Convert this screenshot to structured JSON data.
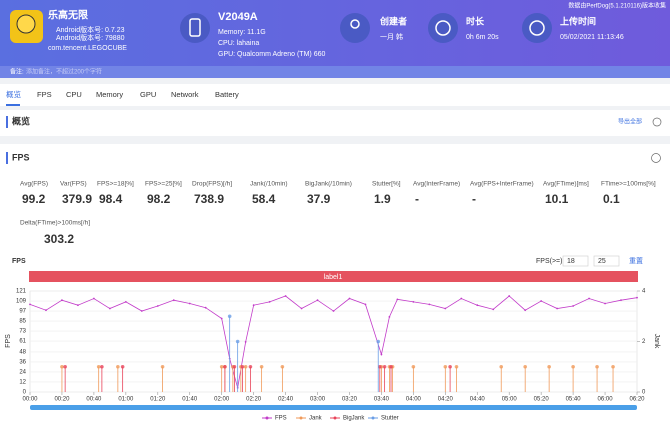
{
  "header": {
    "app_name": "乐高无限",
    "android_version": "Android版本号: 0.7.23",
    "android_code": "Android版本号: 79880",
    "package": "com.tencent.LEGOCUBE",
    "device": "V2049A",
    "memory": "Memory: 11.1G",
    "cpu": "CPU: lahaina",
    "gpu": "GPU: Qualcomm Adreno (TM) 660",
    "creator_label": "创建者",
    "creator": "一月 韩",
    "duration_label": "时长",
    "duration": "0h 6m 20s",
    "upload_label": "上传时间",
    "upload": "05/02/2021 11:13:46",
    "version": "数据由PerfDog(5.1.210116)版本收集"
  },
  "note": {
    "label": "备注:",
    "placeholder": "添加备注，不超过200个字符"
  },
  "tabs": [
    "概览",
    "FPS",
    "CPU",
    "Memory",
    "GPU",
    "Network",
    "Battery"
  ],
  "overview": {
    "title": "概览",
    "export": "导出全部"
  },
  "fps_section": {
    "title": "FPS",
    "metrics": [
      [
        {
          "label": "Avg(FPS)",
          "value": 99.2
        },
        {
          "label": "Var(FPS)",
          "value": 379.9
        },
        {
          "label": "FPS>=18[%]",
          "value": 98.4
        },
        {
          "label": "FPS>=25[%]",
          "value": 98.2
        },
        {
          "label": "Drop(FPS)[/h]",
          "value": 738.9
        },
        {
          "label": "Jank(/10min)",
          "value": 58.4
        },
        {
          "label": "BigJank(/10min)",
          "value": 37.9
        },
        {
          "label": "Stutter[%]",
          "value": 1.9
        },
        {
          "label": "Avg(InterFrame)",
          "value": "-"
        },
        {
          "label": "Avg(FPS+InterFrame)",
          "value": "-"
        },
        {
          "label": "Avg(FTime)[ms]",
          "value": 10.1
        },
        {
          "label": "FTime>=100ms[%]",
          "value": 0.1
        }
      ],
      [
        {
          "label": "Delta(FTime)>100ms[/h]",
          "value": 303.2
        }
      ]
    ]
  },
  "chart_data": {
    "type": "line",
    "title": "FPS",
    "label_bar": "label1",
    "threshold_label": "FPS(>=)",
    "thresholds": [
      18,
      25
    ],
    "reset": "重置",
    "y_label": "FPS",
    "y2_label": "Jank",
    "ylim": [
      0,
      121
    ],
    "yticks": [
      0,
      12,
      24,
      36,
      48,
      61,
      73,
      85,
      97,
      109,
      121
    ],
    "y2lim": [
      0,
      4
    ],
    "y2ticks": [
      0,
      2,
      4
    ],
    "xlim": [
      0,
      380
    ],
    "xticks": [
      {
        "value": 0,
        "label": "00:00"
      },
      {
        "value": 20,
        "label": "00:20"
      },
      {
        "value": 40,
        "label": "00:40"
      },
      {
        "value": 60,
        "label": "01:00"
      },
      {
        "value": 80,
        "label": "01:20"
      },
      {
        "value": 100,
        "label": "01:40"
      },
      {
        "value": 120,
        "label": "02:00"
      },
      {
        "value": 140,
        "label": "02:20"
      },
      {
        "value": 160,
        "label": "02:40"
      },
      {
        "value": 180,
        "label": "03:00"
      },
      {
        "value": 200,
        "label": "03:20"
      },
      {
        "value": 220,
        "label": "03:40"
      },
      {
        "value": 240,
        "label": "04:00"
      },
      {
        "value": 260,
        "label": "04:20"
      },
      {
        "value": 280,
        "label": "04:40"
      },
      {
        "value": 300,
        "label": "05:00"
      },
      {
        "value": 320,
        "label": "05:20"
      },
      {
        "value": 340,
        "label": "05:40"
      },
      {
        "value": 360,
        "label": "06:00"
      },
      {
        "value": 380,
        "label": "06:20"
      }
    ],
    "series": [
      {
        "name": "FPS",
        "color": "#c23bc9",
        "x": [
          0,
          10,
          20,
          30,
          40,
          50,
          60,
          70,
          80,
          90,
          100,
          110,
          120,
          125,
          130,
          135,
          140,
          150,
          160,
          170,
          180,
          190,
          200,
          210,
          220,
          225,
          230,
          240,
          250,
          260,
          270,
          280,
          290,
          300,
          310,
          320,
          330,
          340,
          350,
          360,
          370,
          380
        ],
        "values": [
          105,
          98,
          110,
          104,
          112,
          100,
          108,
          97,
          103,
          110,
          106,
          101,
          88,
          40,
          5,
          60,
          104,
          108,
          115,
          100,
          110,
          97,
          112,
          105,
          45,
          90,
          111,
          108,
          105,
          100,
          112,
          104,
          99,
          115,
          98,
          109,
          100,
          103,
          112,
          106,
          110,
          113
        ]
      },
      {
        "name": "Jank",
        "color": "#f09a5a",
        "axis": "y2",
        "x": [
          20,
          43,
          55,
          83,
          120,
          122,
          127,
          132,
          135,
          145,
          158,
          220,
          225,
          227,
          240,
          260,
          267,
          295,
          310,
          325,
          340,
          355,
          365
        ],
        "values": [
          1,
          1,
          1,
          1,
          1,
          1,
          1,
          1,
          1,
          1,
          1,
          1,
          1,
          1,
          1,
          1,
          1,
          1,
          1,
          1,
          1,
          1,
          1
        ]
      },
      {
        "name": "BigJank",
        "color": "#e8445a",
        "axis": "y2",
        "x": [
          22,
          45,
          58,
          122,
          128,
          133,
          138,
          219,
          222,
          226,
          263
        ],
        "values": [
          1,
          1,
          1,
          1,
          1,
          1,
          1,
          1,
          1,
          1,
          1
        ]
      },
      {
        "name": "Stutter",
        "color": "#6a9ee6",
        "axis": "y2",
        "x": [
          125,
          130,
          218
        ],
        "values": [
          3,
          2,
          2
        ]
      }
    ]
  }
}
